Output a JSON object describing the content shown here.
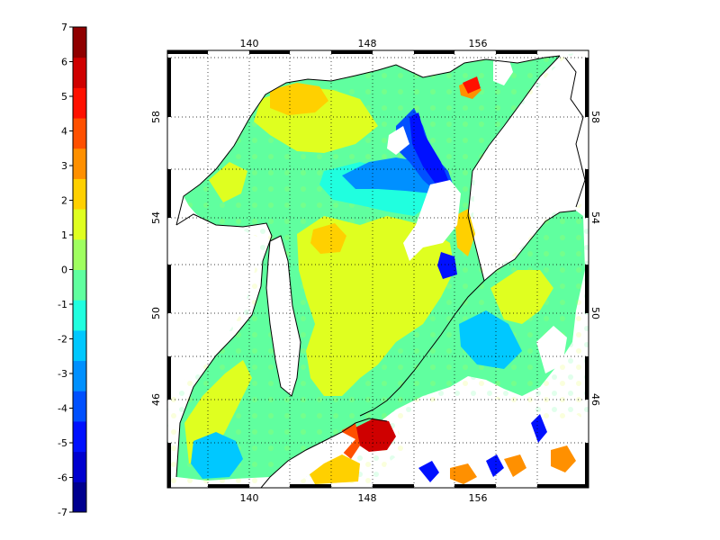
{
  "map": {
    "type": "contourf-map",
    "lon_ticks": [
      "140",
      "148",
      "156"
    ],
    "lat_ticks": [
      "46",
      "50",
      "54",
      "58"
    ],
    "lon_range": [
      131,
      164
    ],
    "lat_range": [
      42.5,
      60
    ],
    "grid": "dotted",
    "missing_color": "#ffffff",
    "coastline_color": "#000000"
  },
  "colorbar": {
    "labels": [
      "7",
      "6",
      "5",
      "4",
      "3",
      "2",
      "1",
      "0",
      "-1",
      "-2",
      "-3",
      "-4",
      "-5",
      "-6",
      "-7"
    ],
    "min": -7,
    "max": 7,
    "colors": [
      "#00008f",
      "#0000cf",
      "#0010ff",
      "#0050ff",
      "#0090ff",
      "#00c8ff",
      "#20ffdf",
      "#60ff9f",
      "#9fff60",
      "#dfff20",
      "#ffd000",
      "#ff9000",
      "#ff5000",
      "#ff1000",
      "#cf0000",
      "#8f0000"
    ]
  }
}
